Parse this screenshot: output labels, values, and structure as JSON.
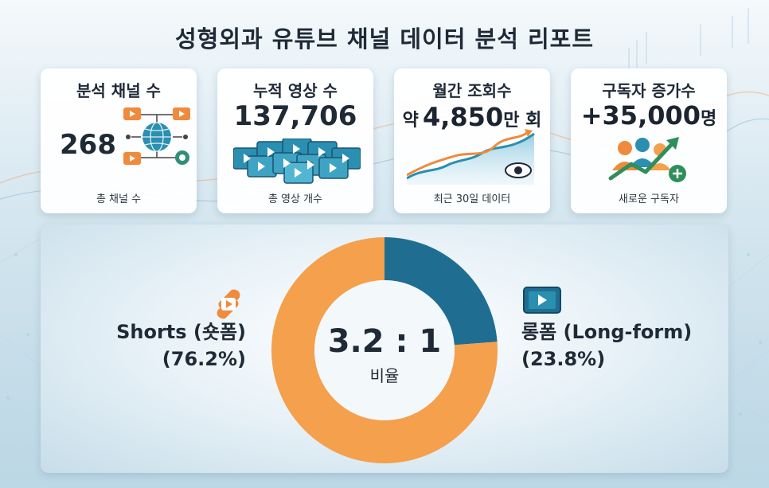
{
  "page": {
    "title": "성형외과 유튜브 채널 데이터 분석 리포트"
  },
  "cards": [
    {
      "title": "분석 채널 수",
      "value": "268",
      "footer": "총 채널 수",
      "icon": "globe-network-icon"
    },
    {
      "title": "누적 영상 수",
      "value": "137,706",
      "footer": "총 영상 개수",
      "icon": "video-stack-icon"
    },
    {
      "title": "월간 조회수",
      "value_prefix": "약",
      "value": "4,850",
      "value_suffix": "만 회",
      "footer": "최근 30일 데이터",
      "icon": "growth-chart-eye-icon"
    },
    {
      "title": "구독자 증가수",
      "value": "+35,000",
      "value_suffix": "명",
      "footer": "새로운 구독자",
      "icon": "users-growth-icon"
    }
  ],
  "ratio": {
    "center_value": "3.2 : 1",
    "center_label": "비율",
    "shorts_label": "Shorts (숏폼)",
    "shorts_percent": "(76.2%)",
    "longform_label": "롱폼 (Long-form)",
    "longform_percent": "(23.8%)"
  },
  "chart_data": {
    "type": "pie",
    "labels": [
      "Shorts (숏폼)",
      "롱폼 (Long-form)"
    ],
    "values": [
      76.2,
      23.8
    ],
    "colors": [
      "#f4a04c",
      "#1f6e92"
    ]
  },
  "colors": {
    "shorts": "#f4a04c",
    "longform": "#1f6e92",
    "accent_orange": "#f08a3c",
    "accent_teal": "#2a8fb0"
  }
}
